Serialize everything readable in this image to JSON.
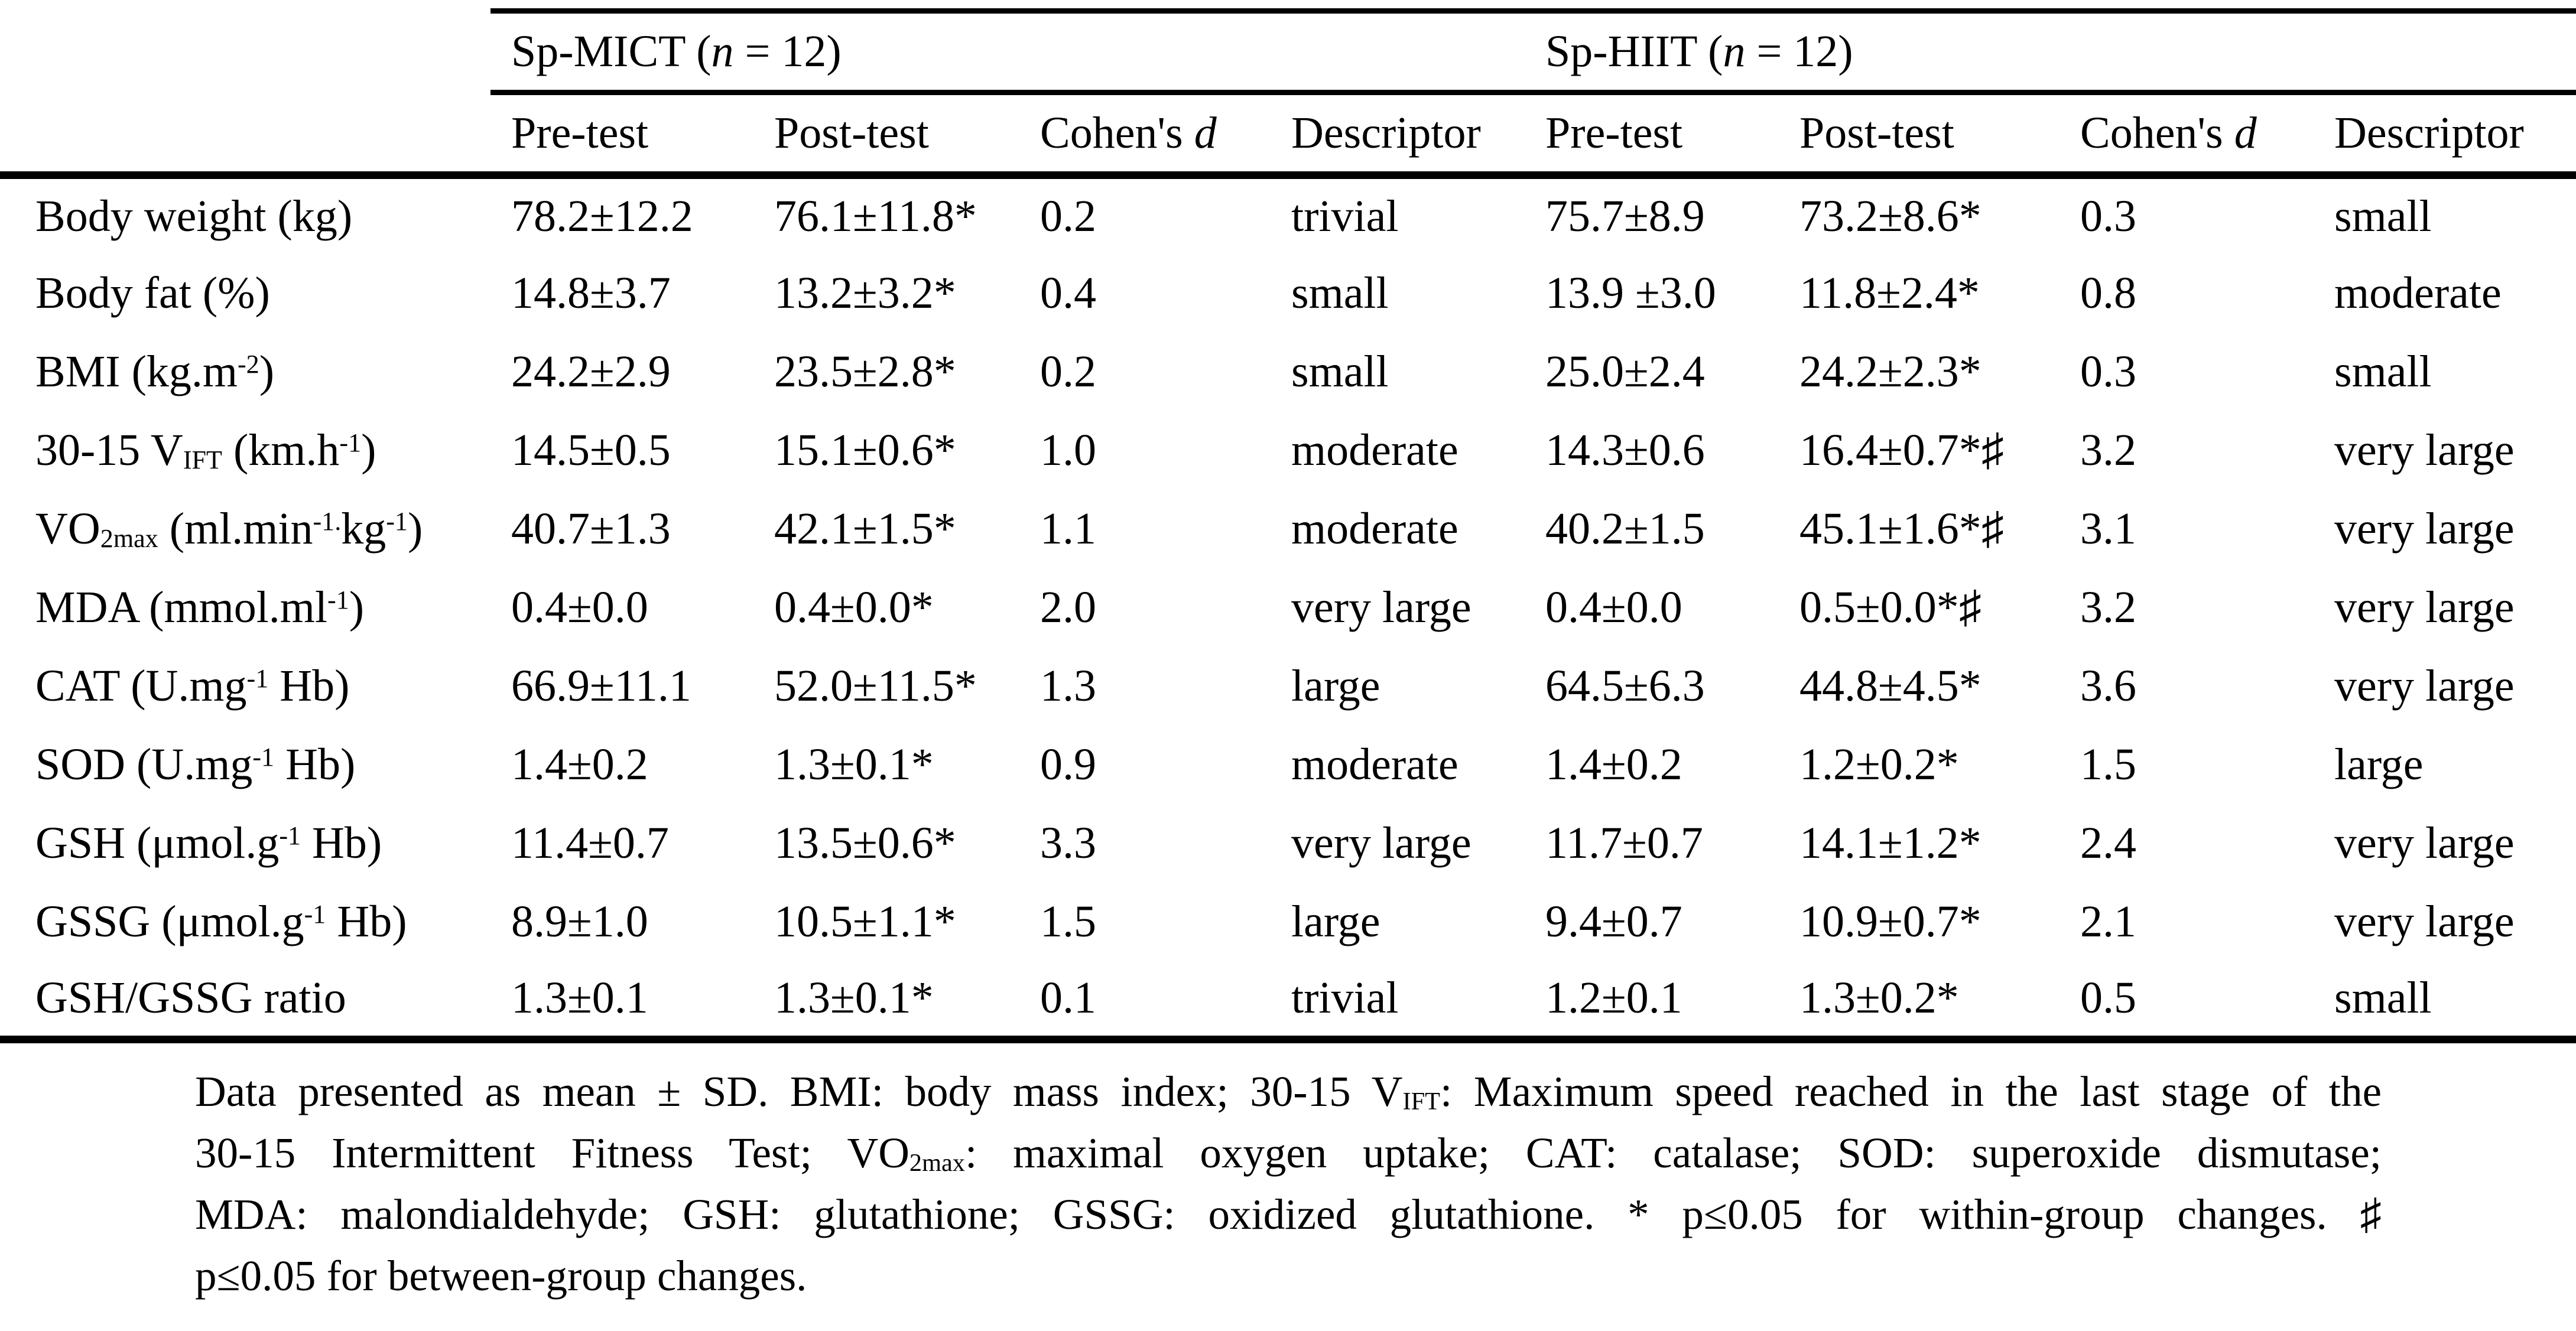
{
  "page": {
    "background": "#ffffff",
    "text_color": "#000000"
  },
  "table": {
    "groups": [
      {
        "label": "Sp-MICT (@{n} = 12)"
      },
      {
        "label": "Sp-HIIT (@{n} = 12)"
      }
    ],
    "column_headers": [
      "Pre-test",
      "Post-test",
      "Cohen's @{d}",
      "Descriptor",
      "Pre-test",
      "Post-test",
      "Cohen's @{d}",
      "Descriptor"
    ],
    "rows": [
      {
        "label": "Body weight (kg)",
        "cells": [
          "78.2±12.2",
          "76.1±11.8*",
          "0.2",
          "trivial",
          "75.7±8.9",
          "73.2±8.6*",
          "0.3",
          "small"
        ]
      },
      {
        "label": "Body fat (%)",
        "cells": [
          "14.8±3.7",
          "13.2±3.2*",
          "0.4",
          "small",
          "13.9 ±3.0",
          "11.8±2.4*",
          "0.8",
          "moderate"
        ]
      },
      {
        "label": "BMI (kg.m^{-2})",
        "cells": [
          "24.2±2.9",
          "23.5±2.8*",
          "0.2",
          "small",
          "25.0±2.4",
          "24.2±2.3*",
          "0.3",
          "small"
        ]
      },
      {
        "label": "30-15 V_{IFT} (km.h^{-1})",
        "cells": [
          "14.5±0.5",
          "15.1±0.6*",
          "1.0",
          "moderate",
          "14.3±0.6",
          "16.4±0.7*♯",
          "3.2",
          "very large"
        ]
      },
      {
        "label": "VO_{2max} (ml.min^{-1.}kg^{-1})",
        "cells": [
          "40.7±1.3",
          "42.1±1.5*",
          "1.1",
          "moderate",
          "40.2±1.5",
          "45.1±1.6*♯",
          "3.1",
          "very large"
        ]
      },
      {
        "label": "MDA (mmol.ml^{-1})",
        "cells": [
          "0.4±0.0",
          "0.4±0.0*",
          "2.0",
          "very large",
          "0.4±0.0",
          "0.5±0.0*♯",
          "3.2",
          "very large"
        ]
      },
      {
        "label": "CAT (U.mg^{-1} Hb)",
        "cells": [
          "66.9±11.1",
          "52.0±11.5*",
          "1.3",
          "large",
          "64.5±6.3",
          "44.8±4.5*",
          "3.6",
          "very large"
        ]
      },
      {
        "label": "SOD (U.mg^{-1} Hb)",
        "cells": [
          "1.4±0.2",
          "1.3±0.1*",
          "0.9",
          "moderate",
          "1.4±0.2",
          "1.2±0.2*",
          "1.5",
          "large"
        ]
      },
      {
        "label": "GSH (μmol.g^{-1} Hb)",
        "cells": [
          "11.4±0.7",
          "13.5±0.6*",
          "3.3",
          "very large",
          "11.7±0.7",
          "14.1±1.2*",
          "2.4",
          "very large"
        ]
      },
      {
        "label": "GSSG (μmol.g^{-1} Hb)",
        "cells": [
          "8.9±1.0",
          "10.5±1.1*",
          "1.5",
          "large",
          "9.4±0.7",
          "10.9±0.7*",
          "2.1",
          "very large"
        ]
      },
      {
        "label": "GSH/GSSG ratio",
        "cells": [
          "1.3±0.1",
          "1.3±0.1*",
          "0.1",
          "trivial",
          "1.2±0.1",
          "1.3±0.2*",
          "0.5",
          "small"
        ]
      }
    ]
  },
  "footnote": {
    "lines": [
      "Data presented as mean ± SD. BMI: body mass index; 30-15 V_{IFT}: Maximum speed reached in the last stage of the",
      "30-15 Intermittent Fitness Test; VO_{2max}: maximal oxygen uptake; CAT: catalase; SOD: superoxide dismutase;",
      "MDA: malondialdehyde; GSH: glutathione; GSSG: oxidized glutathione. * p≤0.05 for within-group changes. ♯",
      "p≤0.05 for between-group changes."
    ]
  }
}
